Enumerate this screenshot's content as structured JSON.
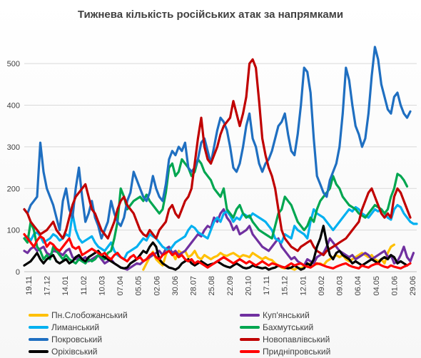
{
  "chart_data": {
    "type": "line",
    "title": "Тижнева кількість російських атак за напрямками",
    "xlabel": "",
    "ylabel": "",
    "ylim": [
      0,
      550
    ],
    "y_ticks": [
      0,
      100,
      200,
      300,
      400,
      500
    ],
    "x_tick_labels": [
      "19.11",
      "17.12",
      "14.01",
      "11.02",
      "10.03",
      "07.04",
      "05.05",
      "02.06",
      "30.06",
      "28.07",
      "25.08",
      "22.09",
      "20.10",
      "17.11",
      "15.12",
      "12.01",
      "09.02",
      "09.03",
      "06.04",
      "04.05",
      "01.06",
      "29.06"
    ],
    "grid": true,
    "legend_position": "bottom",
    "series": [
      {
        "name": "Пн.Слобожанський",
        "color": "#FFC000",
        "values": [
          null,
          null,
          null,
          null,
          null,
          null,
          null,
          null,
          null,
          null,
          null,
          null,
          null,
          null,
          null,
          null,
          null,
          null,
          null,
          null,
          null,
          null,
          null,
          null,
          null,
          null,
          null,
          null,
          null,
          null,
          null,
          null,
          null,
          null,
          null,
          null,
          null,
          5,
          20,
          35,
          48,
          30,
          22,
          15,
          40,
          60,
          45,
          30,
          50,
          45,
          50,
          35,
          40,
          50,
          35,
          30,
          40,
          35,
          30,
          35,
          38,
          45,
          40,
          38,
          42,
          45,
          40,
          35,
          40,
          38,
          35,
          45,
          40,
          35,
          30,
          35,
          30,
          28,
          20,
          15,
          10,
          8,
          12,
          8,
          5,
          10,
          8,
          12,
          15,
          20,
          25,
          18,
          20,
          15,
          25,
          30,
          35,
          40,
          35,
          40,
          30,
          25,
          30,
          35,
          40,
          45,
          40,
          35,
          40,
          30,
          25,
          30,
          20,
          45,
          60,
          65
        ]
      },
      {
        "name": "Куп'янський",
        "color": "#7030A0",
        "values": [
          50,
          45,
          55,
          60,
          50,
          55,
          60,
          45,
          40,
          50,
          48,
          45,
          40,
          50,
          55,
          35,
          30,
          35,
          30,
          35,
          25,
          30,
          35,
          40,
          30,
          20,
          25,
          30,
          20,
          15,
          10,
          8,
          5,
          10,
          15,
          20,
          18,
          25,
          30,
          35,
          40,
          45,
          50,
          40,
          55,
          60,
          45,
          50,
          40,
          45,
          50,
          60,
          70,
          80,
          90,
          85,
          100,
          110,
          105,
          130,
          120,
          140,
          150,
          130,
          120,
          100,
          110,
          90,
          95,
          100,
          110,
          90,
          80,
          70,
          60,
          55,
          50,
          60,
          70,
          80,
          60,
          50,
          40,
          30,
          35,
          25,
          20,
          15,
          30,
          25,
          20,
          35,
          40,
          45,
          60,
          80,
          70,
          60,
          50,
          45,
          40,
          35,
          40,
          30,
          35,
          40,
          45,
          40,
          30,
          35,
          40,
          45,
          50,
          35,
          40,
          20,
          25,
          40,
          60,
          35,
          25,
          45
        ]
      },
      {
        "name": "Лиманський",
        "color": "#00B0F0",
        "values": [
          80,
          85,
          75,
          90,
          95,
          85,
          70,
          75,
          80,
          90,
          85,
          75,
          80,
          90,
          85,
          140,
          100,
          80,
          70,
          75,
          80,
          85,
          70,
          60,
          55,
          50,
          60,
          70,
          50,
          40,
          35,
          30,
          45,
          50,
          55,
          60,
          70,
          80,
          75,
          90,
          85,
          80,
          70,
          60,
          55,
          50,
          60,
          70,
          75,
          80,
          85,
          100,
          110,
          105,
          95,
          90,
          85,
          80,
          100,
          120,
          130,
          120,
          140,
          145,
          135,
          120,
          130,
          125,
          140,
          135,
          130,
          140,
          135,
          130,
          125,
          120,
          110,
          100,
          80,
          75,
          70,
          90,
          85,
          80,
          110,
          100,
          95,
          90,
          80,
          120,
          150,
          140,
          135,
          130,
          120,
          110,
          100,
          110,
          120,
          130,
          140,
          150,
          145,
          155,
          150,
          140,
          135,
          130,
          140,
          150,
          145,
          150,
          140,
          130,
          125,
          150,
          160,
          155,
          140,
          130,
          120,
          115,
          115
        ]
      },
      {
        "name": "Бахмутський",
        "color": "#00A650",
        "values": [
          80,
          70,
          120,
          100,
          60,
          50,
          30,
          40,
          30,
          60,
          50,
          40,
          30,
          40,
          30,
          25,
          20,
          30,
          25,
          20,
          30,
          25,
          30,
          40,
          35,
          30,
          45,
          50,
          80,
          120,
          200,
          180,
          150,
          160,
          170,
          175,
          180,
          170,
          185,
          170,
          160,
          150,
          140,
          150,
          190,
          250,
          260,
          230,
          240,
          270,
          260,
          250,
          230,
          240,
          270,
          260,
          240,
          230,
          220,
          200,
          190,
          180,
          200,
          150,
          140,
          130,
          150,
          160,
          140,
          130,
          135,
          120,
          110,
          100,
          95,
          90,
          85,
          80,
          110,
          140,
          150,
          180,
          170,
          160,
          140,
          120,
          110,
          100,
          110,
          130,
          120,
          150,
          170,
          180,
          190,
          200,
          230,
          210,
          200,
          180,
          170,
          160,
          155,
          150,
          140,
          135,
          130,
          140,
          150,
          160,
          155,
          150,
          140,
          150,
          180,
          200,
          235,
          230,
          220,
          205
        ]
      },
      {
        "name": "Покровський",
        "color": "#1F6FC1",
        "values": [
          150,
          140,
          160,
          170,
          180,
          310,
          240,
          200,
          180,
          160,
          130,
          100,
          170,
          200,
          150,
          130,
          200,
          250,
          180,
          120,
          140,
          170,
          130,
          110,
          80,
          100,
          120,
          170,
          140,
          120,
          110,
          130,
          170,
          190,
          240,
          220,
          200,
          180,
          170,
          190,
          230,
          200,
          180,
          170,
          210,
          270,
          290,
          280,
          300,
          290,
          310,
          250,
          240,
          250,
          270,
          310,
          320,
          290,
          260,
          300,
          340,
          370,
          360,
          340,
          300,
          250,
          240,
          260,
          300,
          350,
          380,
          320,
          300,
          260,
          240,
          260,
          270,
          290,
          320,
          350,
          360,
          380,
          330,
          290,
          280,
          330,
          400,
          490,
          480,
          430,
          320,
          230,
          210,
          190,
          180,
          220,
          240,
          260,
          300,
          380,
          490,
          460,
          400,
          350,
          330,
          300,
          320,
          380,
          470,
          540,
          510,
          450,
          420,
          390,
          380,
          420,
          430,
          400,
          380,
          370,
          385
        ]
      },
      {
        "name": "Новопавлівський",
        "color": "#C00000",
        "values": [
          150,
          140,
          120,
          110,
          100,
          90,
          95,
          100,
          110,
          120,
          100,
          90,
          80,
          100,
          130,
          160,
          180,
          190,
          200,
          210,
          180,
          150,
          140,
          120,
          100,
          90,
          80,
          100,
          120,
          150,
          170,
          180,
          160,
          150,
          140,
          120,
          100,
          90,
          85,
          100,
          90,
          80,
          100,
          110,
          120,
          150,
          160,
          140,
          130,
          150,
          170,
          180,
          200,
          260,
          320,
          370,
          300,
          270,
          260,
          280,
          300,
          330,
          350,
          360,
          370,
          410,
          380,
          350,
          380,
          420,
          500,
          510,
          490,
          410,
          320,
          280,
          250,
          230,
          200,
          150,
          100,
          80,
          70,
          60,
          55,
          50,
          60,
          65,
          70,
          75,
          60,
          50,
          45,
          40,
          50,
          55,
          60,
          65,
          70,
          75,
          80,
          90,
          100,
          110,
          120,
          150,
          170,
          190,
          200,
          180,
          160,
          140,
          130,
          140,
          130,
          180,
          200,
          190,
          170,
          150,
          130
        ]
      },
      {
        "name": "Оріхівський",
        "color": "#000000",
        "values": [
          15,
          20,
          25,
          35,
          45,
          30,
          20,
          30,
          35,
          40,
          25,
          20,
          25,
          30,
          20,
          25,
          35,
          40,
          30,
          25,
          35,
          40,
          45,
          50,
          40,
          35,
          30,
          25,
          20,
          15,
          10,
          8,
          10,
          20,
          25,
          30,
          40,
          50,
          45,
          60,
          70,
          60,
          30,
          20,
          15,
          10,
          8,
          5,
          10,
          20,
          25,
          30,
          20,
          15,
          20,
          25,
          20,
          15,
          18,
          20,
          25,
          20,
          15,
          12,
          10,
          15,
          20,
          15,
          10,
          8,
          10,
          15,
          12,
          10,
          8,
          10,
          5,
          8,
          10,
          15,
          12,
          10,
          8,
          10,
          15,
          10,
          5,
          8,
          20,
          15,
          30,
          60,
          80,
          110,
          70,
          40,
          30,
          45,
          50,
          40,
          35,
          30,
          20,
          25,
          20,
          15,
          20,
          25,
          30,
          25,
          20,
          30,
          35,
          30,
          40,
          35,
          20,
          25,
          20,
          15
        ]
      },
      {
        "name": "Придніпровський",
        "color": "#FF0000",
        "values": [
          90,
          80,
          70,
          60,
          75,
          85,
          80,
          60,
          70,
          65,
          55,
          50,
          60,
          70,
          80,
          60,
          55,
          60,
          40,
          45,
          50,
          55,
          50,
          45,
          40,
          45,
          35,
          30,
          40,
          45,
          35,
          30,
          25,
          35,
          40,
          30,
          35,
          25,
          30,
          40,
          45,
          35,
          30,
          40,
          45,
          50,
          40,
          45,
          35,
          40,
          30,
          25,
          30,
          20,
          25,
          20,
          15,
          10,
          15,
          20,
          25,
          30,
          35,
          30,
          25,
          20,
          25,
          30,
          25,
          20,
          25,
          20,
          15,
          20,
          25,
          20,
          15,
          20,
          18,
          15,
          12,
          10,
          15,
          20,
          15,
          18,
          20,
          15,
          12,
          10,
          15,
          20,
          18,
          15,
          12,
          10,
          8,
          12,
          15,
          18,
          20,
          15,
          12,
          10,
          8,
          15,
          12,
          10,
          15,
          18,
          20,
          15,
          12,
          10,
          15,
          12,
          10,
          8,
          12,
          15,
          20
        ]
      }
    ]
  }
}
